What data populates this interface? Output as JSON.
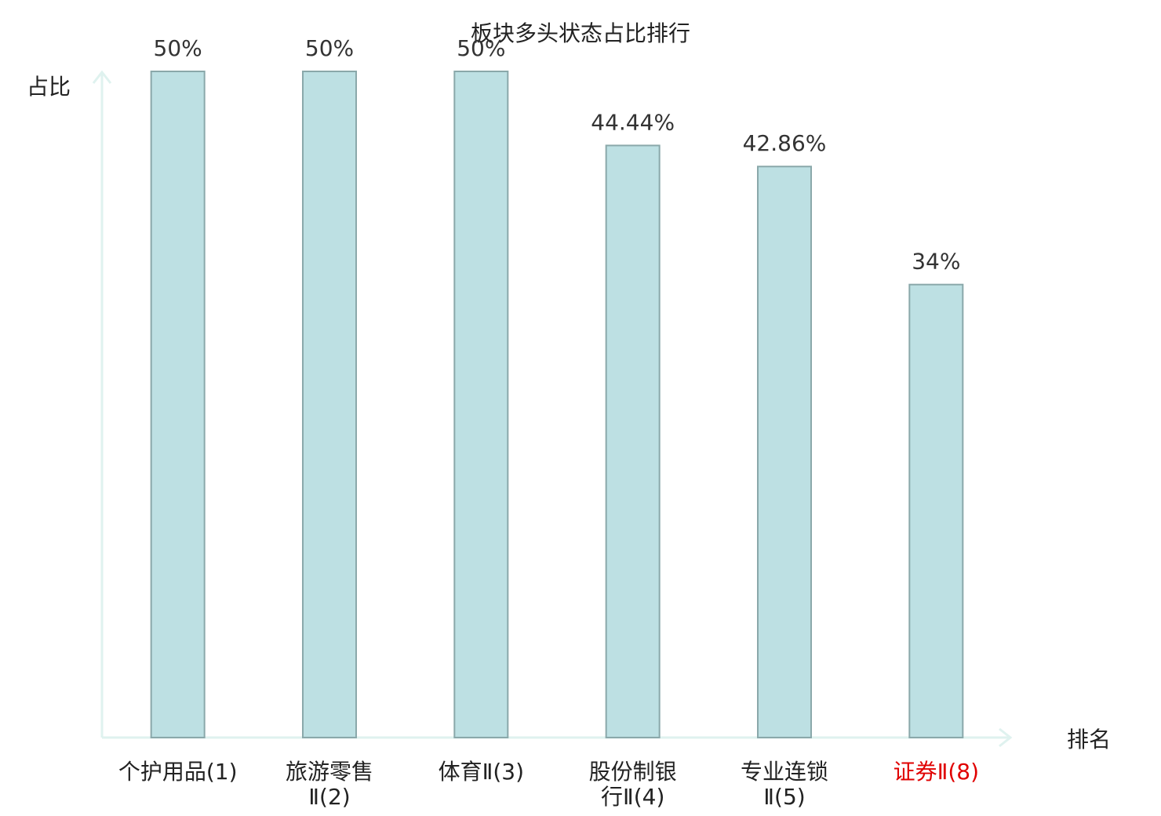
{
  "chart_data": {
    "type": "bar",
    "title": "板块多头状态占比排行",
    "y_label": "占比",
    "x_label": "排名",
    "categories": [
      "个护用品(1)",
      "旅游零售Ⅱ(2)",
      "体育Ⅱ(3)",
      "股份制银行Ⅱ(4)",
      "专业连锁Ⅱ(5)",
      "证券Ⅱ(8)"
    ],
    "category_colors": [
      "#222222",
      "#222222",
      "#222222",
      "#222222",
      "#222222",
      "#e00000"
    ],
    "values": [
      50,
      50,
      50,
      44.44,
      42.86,
      34
    ],
    "value_labels": [
      "50%",
      "50%",
      "50%",
      "44.44%",
      "42.86%",
      "34%"
    ],
    "color": "#bde0e3",
    "edge_color": "#8aa8aa",
    "ylim": [
      0,
      50
    ]
  }
}
